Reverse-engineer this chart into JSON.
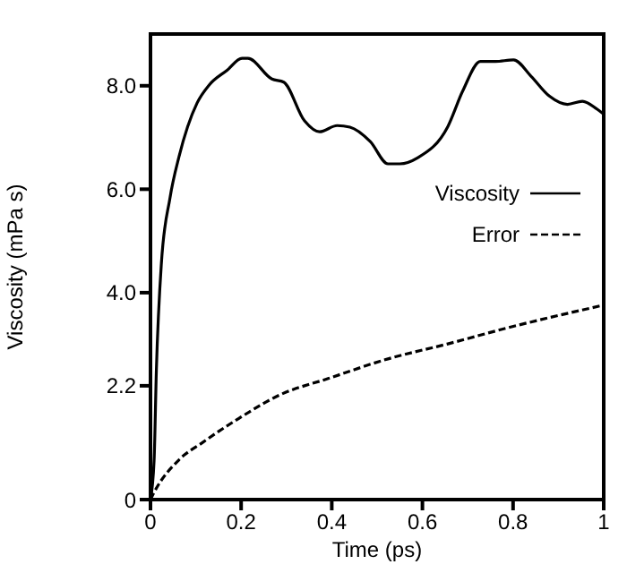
{
  "chart_data": {
    "type": "line",
    "xlabel": "Time (ps)",
    "ylabel": "Viscosity (mPa s)",
    "xlim": [
      0,
      1
    ],
    "xticks": [
      0,
      0.2,
      0.4,
      0.6,
      0.8,
      1
    ],
    "ylim": [
      0,
      9
    ],
    "yticks": [
      0,
      2.2,
      {
        "value": 4,
        "label": "4.0"
      },
      {
        "value": 6,
        "label": "6.0"
      },
      {
        "value": 8,
        "label": "8.0"
      }
    ],
    "legend": "right",
    "marker": "none",
    "series": [
      {
        "name": "Viscosity",
        "color": "#000000",
        "line_style": "solid",
        "x": [
          0,
          0.008,
          0.013,
          0.024,
          0.043,
          0.063,
          0.103,
          0.129,
          0.169,
          0.202,
          0.215,
          0.268,
          0.294,
          0.34,
          0.373,
          0.412,
          0.44,
          0.485,
          0.524,
          0.55,
          0.59,
          0.656,
          0.689,
          0.728,
          0.761,
          0.801,
          0.84,
          0.88,
          0.92,
          0.953,
          0.985,
          1
        ],
        "values": [
          0,
          0.76,
          2.5,
          4.56,
          5.83,
          6.63,
          7.67,
          8.01,
          8.3,
          8.53,
          8.53,
          8.13,
          8.07,
          7.32,
          7.11,
          7.23,
          7.2,
          6.92,
          6.49,
          6.49,
          6.61,
          7.21,
          7.9,
          8.47,
          8.47,
          8.5,
          8.18,
          7.8,
          7.64,
          7.7,
          7.55,
          7.45
        ]
      },
      {
        "name": "Error",
        "color": "#000000",
        "line_style": "dashed",
        "x": [
          0,
          0.008,
          0.063,
          0.116,
          0.195,
          0.287,
          0.392,
          0.524,
          0.656,
          0.788,
          1
        ],
        "values": [
          0,
          0.14,
          0.77,
          1.11,
          1.57,
          2.03,
          2.34,
          2.72,
          3.01,
          3.32,
          3.76
        ]
      }
    ]
  }
}
